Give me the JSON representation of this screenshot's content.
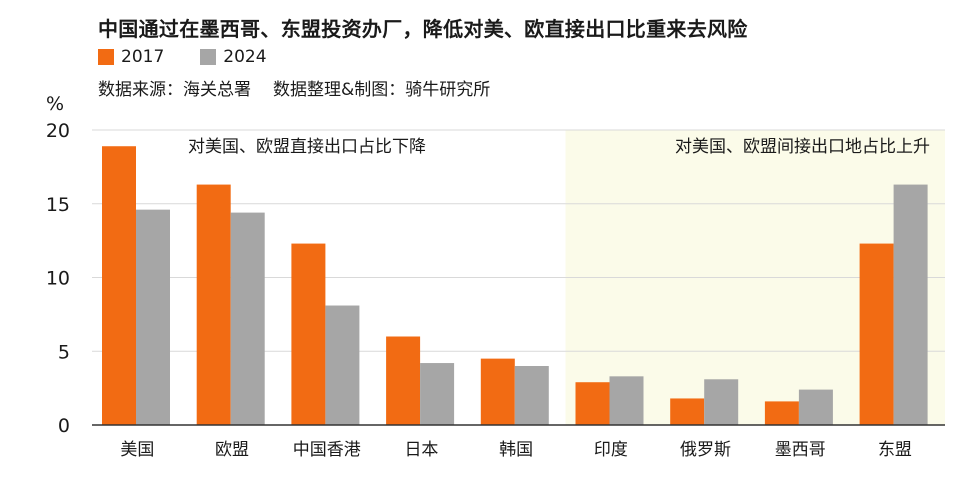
{
  "header": {
    "title": "中国通过在墨西哥、东盟投资办厂，降低对美、欧直接出口比重来去风险",
    "source": "数据来源：海关总署",
    "producer": "数据整理&制图：骑牛研究所"
  },
  "colors": {
    "series_2017": "#f26b13",
    "series_2024": "#a6a6a6",
    "highlight_bg": "#fbfbe9",
    "grid": "#d9d9d9",
    "axis": "#333333"
  },
  "chart_data": {
    "type": "bar",
    "ylabel": "%",
    "ylim": [
      0,
      20
    ],
    "yticks": [
      0,
      5,
      10,
      15,
      20
    ],
    "grid": true,
    "legend_position": "top-left",
    "categories": [
      "美国",
      "欧盟",
      "中国香港",
      "日本",
      "韩国",
      "印度",
      "俄罗斯",
      "墨西哥",
      "东盟"
    ],
    "series": [
      {
        "name": "2017",
        "values": [
          18.9,
          16.3,
          12.3,
          6.0,
          4.5,
          2.9,
          1.8,
          1.6,
          12.3
        ]
      },
      {
        "name": "2024",
        "values": [
          14.6,
          14.4,
          8.1,
          4.2,
          4.0,
          3.3,
          3.1,
          2.4,
          16.3
        ]
      }
    ],
    "annotations": [
      {
        "text": "对美国、欧盟直接出口占比下降",
        "region": "left"
      },
      {
        "text": "对美国、欧盟间接出口地占比上升",
        "region": "right"
      }
    ]
  }
}
